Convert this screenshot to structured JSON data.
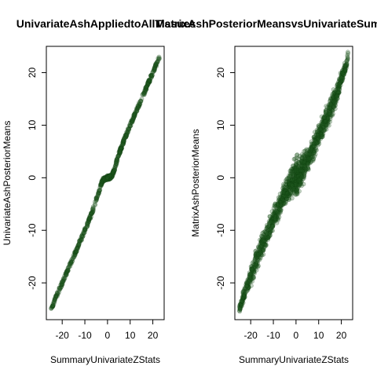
{
  "chart_data": [
    {
      "type": "scatter",
      "title": "UnivariateAshAppliedtoAllTissues",
      "xlabel": "SummaryUnivariateZStats",
      "ylabel": "UnivariateAshPosteriorMeans",
      "xlim": [
        -27,
        25
      ],
      "ylim": [
        -27,
        25
      ],
      "xticks": [
        -20,
        -10,
        0,
        10,
        20
      ],
      "yticks": [
        -20,
        -10,
        0,
        10,
        20
      ],
      "point_color": "#1f5a1f",
      "point_stroke": "#0f3f0f",
      "series": [
        {
          "x": [
            -25,
            -23,
            -21,
            -19,
            -17,
            -15,
            -13,
            -11,
            -9,
            -7,
            -5,
            -4,
            -3,
            -2,
            -1,
            0,
            1,
            2,
            3,
            4,
            5,
            7,
            9,
            11,
            13,
            15,
            17,
            19,
            21,
            23
          ],
          "y": [
            -25,
            -23,
            -21,
            -19,
            -17,
            -15,
            -13,
            -11,
            -9,
            -6.8,
            -4.2,
            -3,
            -1.5,
            -0.4,
            -0.1,
            0,
            0.1,
            0.4,
            1.5,
            3,
            4.5,
            6.8,
            9,
            11,
            13,
            15,
            17,
            19,
            21,
            23
          ]
        }
      ]
    },
    {
      "type": "scatter",
      "title": "MatrixAshPosteriorMeansvsUnivariateSummaryStats",
      "xlabel": "SummaryUnivariateZStats",
      "ylabel": "MatrixAshPosteriorMeans",
      "xlim": [
        -27,
        25
      ],
      "ylim": [
        -27,
        25
      ],
      "xticks": [
        -20,
        -10,
        0,
        10,
        20
      ],
      "yticks": [
        -20,
        -10,
        0,
        10,
        20
      ],
      "point_color": "#1f5a1f",
      "point_stroke": "#0f3f0f",
      "series": [
        {
          "x": [
            -25,
            -22,
            -20,
            -18,
            -15,
            -12,
            -10,
            -8,
            -6,
            -4,
            -2,
            0,
            2,
            4,
            6,
            8,
            10,
            12,
            15,
            18,
            20,
            22,
            23
          ],
          "y_center": [
            -25,
            -21,
            -19,
            -16,
            -13,
            -10,
            -8,
            -6,
            -4,
            -2.5,
            -1,
            0,
            1,
            2.5,
            4,
            6,
            8,
            10,
            13,
            16,
            19,
            21,
            23.5
          ],
          "y_spread": [
            1,
            2,
            2.5,
            3,
            3,
            3,
            3,
            3,
            2.5,
            3.5,
            4,
            5,
            4,
            3.5,
            3,
            3,
            3,
            3,
            3,
            3,
            2,
            1.5,
            1
          ]
        }
      ]
    }
  ]
}
